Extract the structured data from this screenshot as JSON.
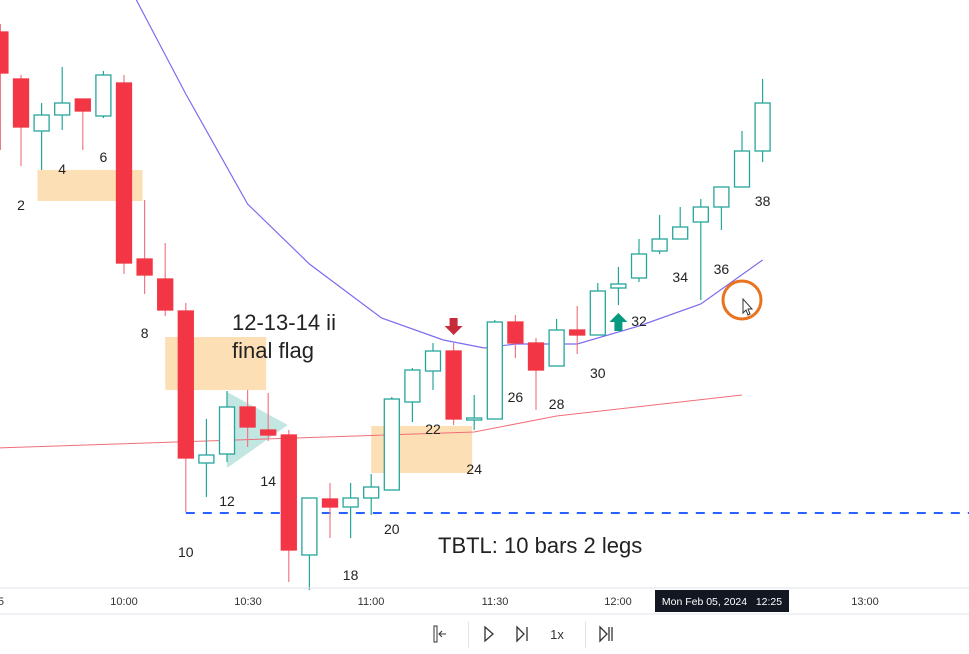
{
  "chart_data": {
    "type": "candlestick",
    "title": "",
    "xlabel": "",
    "ylabel": "",
    "first_bar_time": "09:30",
    "bar_minutes": 5,
    "colors": {
      "up": "#26a69a",
      "down": "#f23645",
      "ema_fast": "#7b6cf0",
      "ema_slow": "#f06e7a",
      "level": "#2962ff",
      "zone": "#fdd9a8"
    },
    "candles": [
      [
        622,
        630,
        504,
        581
      ],
      [
        575,
        579,
        488,
        527
      ],
      [
        523,
        551,
        484,
        539
      ],
      [
        539,
        587,
        524,
        551
      ],
      [
        555,
        555,
        504,
        543
      ],
      [
        538,
        583,
        536,
        579
      ],
      [
        571,
        579,
        380,
        391
      ],
      [
        395,
        454,
        360,
        379
      ],
      [
        375,
        411,
        338,
        344
      ],
      [
        343,
        351,
        142,
        196
      ],
      [
        191,
        235,
        157,
        199
      ],
      [
        200,
        263,
        192,
        247
      ],
      [
        247,
        264,
        207,
        227
      ],
      [
        224,
        261,
        213,
        219
      ],
      [
        219,
        224,
        72,
        104
      ],
      [
        99,
        156,
        64,
        156
      ],
      [
        155,
        171,
        116,
        147
      ],
      [
        147,
        171,
        116,
        156
      ],
      [
        156,
        180,
        139,
        167
      ],
      [
        164,
        257,
        164,
        255
      ],
      [
        252,
        286,
        232,
        284
      ],
      [
        283,
        311,
        264,
        303
      ],
      [
        303,
        311,
        229,
        235
      ],
      [
        235,
        259,
        224,
        236
      ],
      [
        235,
        334,
        235,
        332
      ],
      [
        332,
        339,
        296,
        311
      ],
      [
        311,
        316,
        244,
        284
      ],
      [
        288,
        335,
        288,
        324
      ],
      [
        324,
        348,
        300,
        319
      ],
      [
        319,
        371,
        319,
        363
      ],
      [
        366,
        387,
        349,
        370
      ],
      [
        376,
        415,
        372,
        400
      ],
      [
        403,
        439,
        400,
        415
      ],
      [
        415,
        447,
        415,
        427
      ],
      [
        432,
        455,
        354,
        447
      ],
      [
        447,
        467,
        424,
        467
      ],
      [
        467,
        523,
        467,
        503
      ],
      [
        503,
        575,
        492,
        551
      ]
    ],
    "ema_fast": [
      [
        7.6,
        654
      ],
      [
        10,
        560
      ],
      [
        13,
        450
      ],
      [
        16,
        390
      ],
      [
        19.5,
        336
      ],
      [
        22.5,
        314
      ],
      [
        24.5,
        306
      ],
      [
        26,
        310
      ],
      [
        29,
        310
      ],
      [
        32,
        328
      ],
      [
        35,
        350
      ],
      [
        38,
        394
      ]
    ],
    "ema_slow": [
      [
        -5,
        202
      ],
      [
        24,
        222
      ],
      [
        28,
        238
      ],
      [
        37,
        259
      ]
    ],
    "level_price": 141,
    "bar_labels": [
      {
        "bar": 2,
        "text": "2",
        "price": 444
      },
      {
        "bar": 4,
        "text": "4",
        "price": 480
      },
      {
        "bar": 6,
        "text": "6",
        "price": 492
      },
      {
        "bar": 8,
        "text": "8",
        "price": 316
      },
      {
        "bar": 10,
        "text": "10",
        "price": 97
      },
      {
        "bar": 12,
        "text": "12",
        "price": 148
      },
      {
        "bar": 14,
        "text": "14",
        "price": 168
      },
      {
        "bar": 18,
        "text": "18",
        "price": 74
      },
      {
        "bar": 20,
        "text": "20",
        "price": 120
      },
      {
        "bar": 22,
        "text": "22",
        "price": 220
      },
      {
        "bar": 24,
        "text": "24",
        "price": 180
      },
      {
        "bar": 26,
        "text": "26",
        "price": 252
      },
      {
        "bar": 28,
        "text": "28",
        "price": 245
      },
      {
        "bar": 30,
        "text": "30",
        "price": 276
      },
      {
        "bar": 32,
        "text": "32",
        "price": 328
      },
      {
        "bar": 34,
        "text": "34",
        "price": 372
      },
      {
        "bar": 36,
        "text": "36",
        "price": 380
      },
      {
        "bar": 38,
        "text": "38",
        "price": 448
      }
    ],
    "annotations": {
      "flag_line1": "12-13-14 ii",
      "flag_line2": "final flag",
      "tbtl": "TBTL: 10 bars 2 legs"
    },
    "x_ticks": [
      "5",
      "10:00",
      "10:30",
      "11:00",
      "11:30",
      "12:00",
      "13:00"
    ],
    "crosshair_time": "Mon Feb 05, 2024   12:25"
  },
  "replay_controls": {
    "step_back_icon": "jump-to-start-icon",
    "play_icon": "play-icon",
    "forward_icon": "step-forward-icon",
    "speed": "1x",
    "end_icon": "jump-to-realtime-icon"
  }
}
